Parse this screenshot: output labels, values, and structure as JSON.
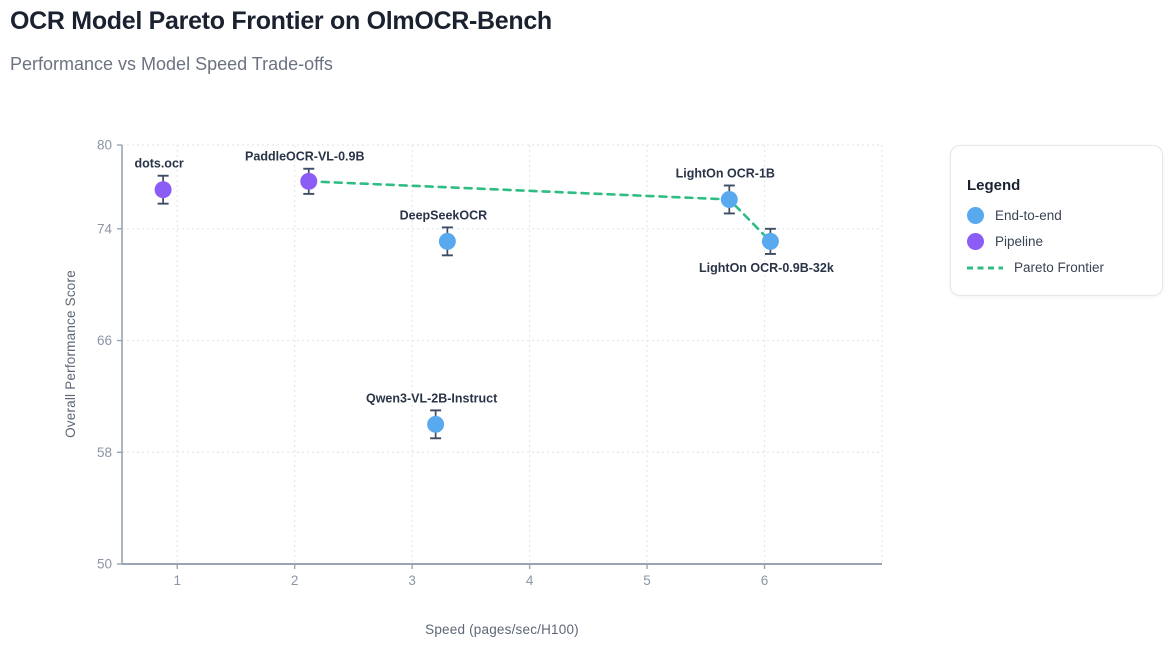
{
  "header": {
    "title": "OCR Model Pareto Frontier on OlmOCR-Bench",
    "subtitle": "Performance vs Model Speed Trade-offs"
  },
  "legend": {
    "title": "Legend",
    "items": [
      {
        "label": "End-to-end",
        "marker": "circle",
        "color": "#59a9ef"
      },
      {
        "label": "Pipeline",
        "marker": "circle",
        "color": "#8b5cf6"
      },
      {
        "label": "Pareto Frontier",
        "marker": "dashed-line",
        "color": "#2fbd84"
      }
    ]
  },
  "chart_data": {
    "type": "scatter",
    "title": "OCR Model Pareto Frontier on OlmOCR-Bench",
    "subtitle": "Performance vs Model Speed Trade-offs",
    "xlabel": "Speed (pages/sec/H100)",
    "ylabel": "Overall Performance Score",
    "xlim": [
      0.53,
      7.0
    ],
    "ylim": [
      50,
      80
    ],
    "x_ticks": [
      1,
      2,
      3,
      4,
      5,
      6
    ],
    "y_ticks": [
      50,
      58,
      66,
      74,
      80
    ],
    "x_gridlines": [
      1,
      2,
      3,
      4,
      5,
      6,
      7
    ],
    "y_gridlines": [
      58,
      66,
      74,
      80
    ],
    "grid": true,
    "legend_position": "right",
    "series": [
      {
        "name": "Pipeline",
        "color": "#8b5cf6",
        "points": [
          {
            "label": "dots.ocr",
            "x": 0.88,
            "y": 76.8,
            "err": 1.0,
            "label_pos": "top"
          },
          {
            "label": "PaddleOCR-VL-0.9B",
            "x": 2.12,
            "y": 77.4,
            "err": 0.9,
            "label_pos": "top"
          }
        ]
      },
      {
        "name": "End-to-end",
        "color": "#59a9ef",
        "points": [
          {
            "label": "DeepSeekOCR",
            "x": 3.3,
            "y": 73.1,
            "err": 1.0,
            "label_pos": "top"
          },
          {
            "label": "Qwen3-VL-2B-Instruct",
            "x": 3.2,
            "y": 60.0,
            "err": 1.0,
            "label_pos": "top"
          },
          {
            "label": "LightOn OCR-1B",
            "x": 5.7,
            "y": 76.1,
            "err": 1.0,
            "label_pos": "top"
          },
          {
            "label": "LightOn OCR-0.9B-32k",
            "x": 6.05,
            "y": 73.1,
            "err": 0.9,
            "label_pos": "bottom"
          }
        ]
      }
    ],
    "pareto_frontier": {
      "name": "Pareto Frontier",
      "color": "#2fbd84",
      "points": [
        {
          "x": 2.12,
          "y": 77.4
        },
        {
          "x": 5.7,
          "y": 76.1
        },
        {
          "x": 6.05,
          "y": 73.1
        }
      ]
    },
    "style_colors": {
      "grid": "#e3e8ee",
      "axis": "#9aa4b2",
      "tick_label": "#8c96a5",
      "axis_title": "#5d6775",
      "point_label": "#2a3447",
      "error_bar": "#3e4c63"
    }
  }
}
